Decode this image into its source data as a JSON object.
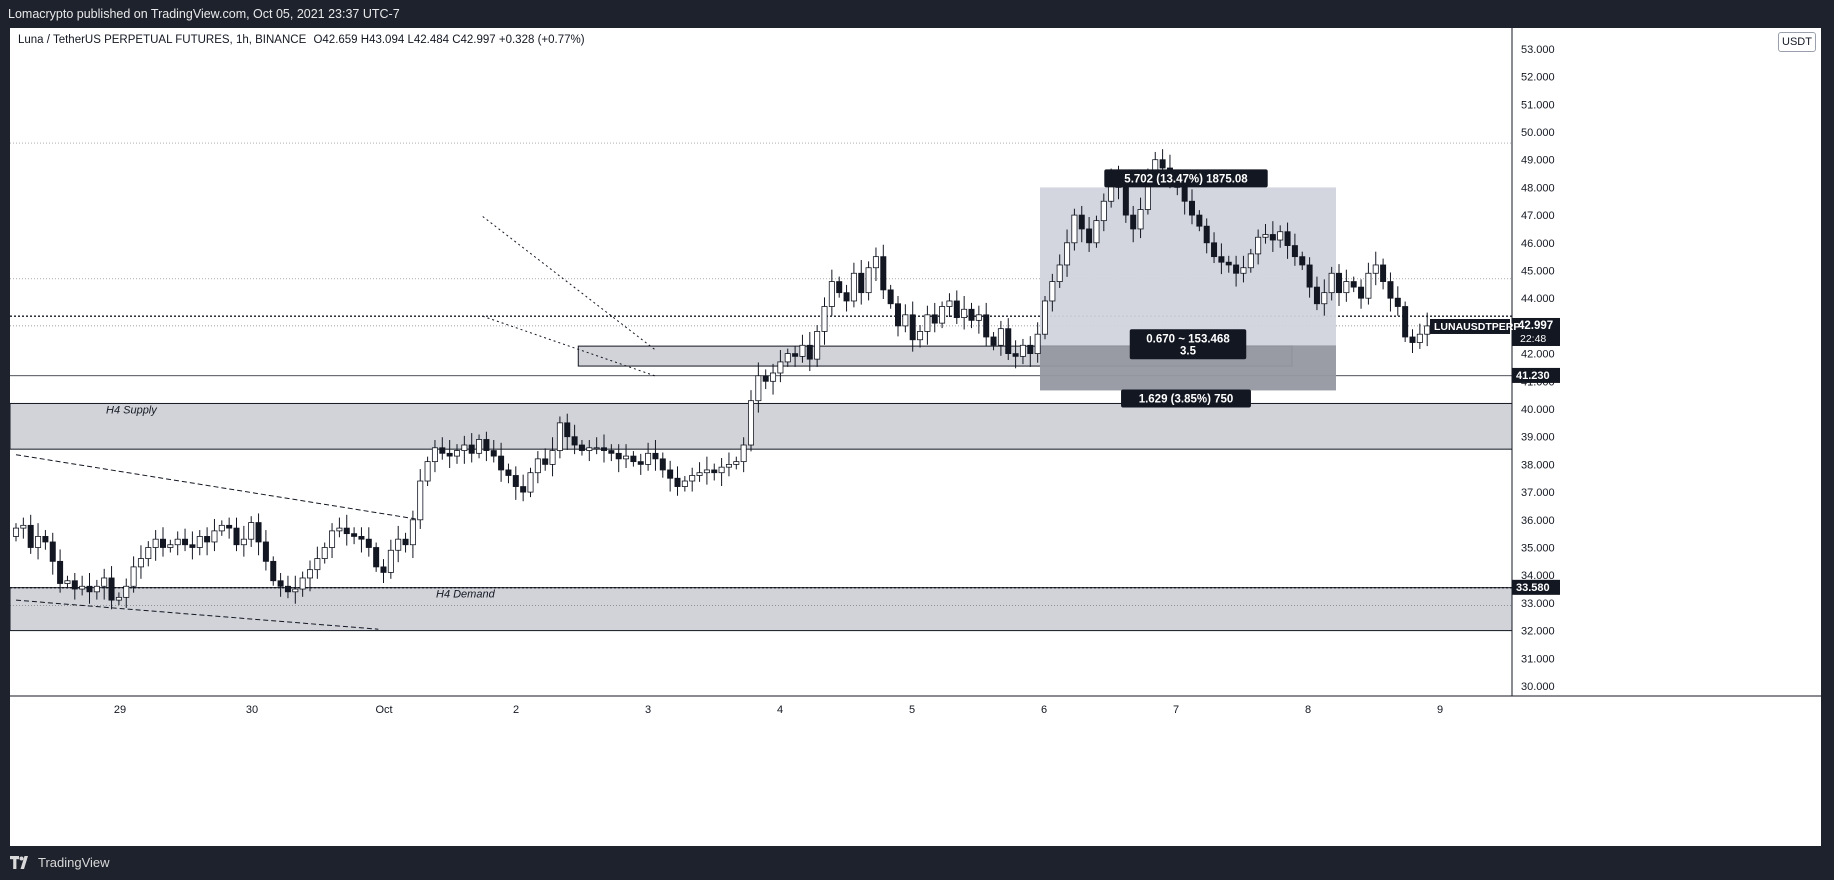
{
  "header": {
    "published_text": "Lomacrypto published on TradingView.com, Oct 05, 2021 23:37 UTC-7"
  },
  "legend": {
    "symbol": "Luna / TetherUS PERPETUAL FUTURES, 1h, BINANCE",
    "ohlc": "O42.659 H43.094 L42.484 C42.997 +0.328 (+0.77%)"
  },
  "currency_button": "USDT",
  "footer": {
    "brand": "TradingView"
  },
  "colors": {
    "up": "#ffffff",
    "down": "#131722",
    "zone": "#d1d3d8",
    "label_bg": "#131722",
    "label_text": "#ffffff",
    "position_box": "#d1d4dc"
  },
  "chart_data": {
    "type": "candlestick",
    "symbol": "LUNAUSDTPERP",
    "timeframe": "1h",
    "x_ticks": [
      "29",
      "30",
      "Oct",
      "2",
      "3",
      "4",
      "5",
      "6",
      "7",
      "8",
      "9"
    ],
    "y_ticks": [
      30,
      31,
      32,
      33,
      34,
      35,
      36,
      37,
      38,
      39,
      40,
      41,
      42,
      43,
      44,
      45,
      46,
      47,
      48,
      49,
      50,
      51,
      52,
      53
    ],
    "ylim": [
      29.5,
      54
    ],
    "price_labels": {
      "last": "42.997",
      "countdown": "22:48",
      "symbol_tag": "LUNAUSDTPERP",
      "level_1": "41.230",
      "level_2": "33.580"
    },
    "zones": [
      {
        "label": "H4 Supply",
        "from": 38.55,
        "to": 40.2
      },
      {
        "label": "H4 Demand",
        "from": 32.0,
        "to": 33.55
      },
      {
        "label": "",
        "from": 41.55,
        "to": 42.27
      }
    ],
    "position": {
      "entry": 42.3,
      "target": 48.0,
      "stop": 40.67,
      "target_label": "5.702 (13.47%) 1875.08",
      "stop_label": "1.629 (3.85%) 750",
      "center_label_1": "0.670 ~ 153.468",
      "center_label_2": "3.5"
    },
    "horizontal_levels": [
      49.6,
      44.7,
      43.35,
      43.0,
      41.2,
      33.55,
      32.9
    ],
    "trendlines": [
      {
        "style": "dashed",
        "from": [
          0,
          38.35
        ],
        "to": [
          54.4,
          36.03
        ]
      },
      {
        "style": "dashed",
        "from": [
          0,
          33.1
        ],
        "to": [
          49.3,
          32.05
        ]
      },
      {
        "style": "dotted",
        "from": [
          63.5,
          46.95
        ],
        "to": [
          86.9,
          42.15
        ]
      },
      {
        "style": "dotted",
        "from": [
          63.5,
          43.35
        ],
        "to": [
          86.9,
          41.2
        ]
      }
    ],
    "closes": [
      35.7,
      35.8,
      35.0,
      35.4,
      35.2,
      34.5,
      33.7,
      33.8,
      33.5,
      33.6,
      33.4,
      33.6,
      33.9,
      33.1,
      33.2,
      33.6,
      34.3,
      34.6,
      35.0,
      35.3,
      35.0,
      35.1,
      35.3,
      35.1,
      35.0,
      35.4,
      35.2,
      35.6,
      35.8,
      35.7,
      35.1,
      35.3,
      35.9,
      35.2,
      34.5,
      33.8,
      33.6,
      33.4,
      33.5,
      33.9,
      34.2,
      34.6,
      35.0,
      35.6,
      35.7,
      35.5,
      35.4,
      35.3,
      35.0,
      34.3,
      34.1,
      34.9,
      35.3,
      35.1,
      36.0,
      37.4,
      38.1,
      38.6,
      38.4,
      38.3,
      38.5,
      38.7,
      38.4,
      38.9,
      38.5,
      38.3,
      37.8,
      37.6,
      37.2,
      37.0,
      37.7,
      38.2,
      38.0,
      38.5,
      39.5,
      39.0,
      38.7,
      38.5,
      38.6,
      38.6,
      38.5,
      38.4,
      38.2,
      38.3,
      38.1,
      38.0,
      38.4,
      38.2,
      37.8,
      37.5,
      37.2,
      37.4,
      37.6,
      37.7,
      37.8,
      37.7,
      37.9,
      38.0,
      38.1,
      38.7,
      40.3,
      41.2,
      41.0,
      41.3,
      41.7,
      42.0,
      41.9,
      42.3,
      41.8,
      42.8,
      43.7,
      44.6,
      44.2,
      43.9,
      44.9,
      44.2,
      45.1,
      45.5,
      44.3,
      43.8,
      43.0,
      43.4,
      42.5,
      42.8,
      43.4,
      43.1,
      43.7,
      43.9,
      43.3,
      43.6,
      43.2,
      43.4,
      42.6,
      42.3,
      42.9,
      42.0,
      41.9,
      42.3,
      42.0,
      42.7,
      43.9,
      44.6,
      45.2,
      46.0,
      47.0,
      46.5,
      46.0,
      46.8,
      47.5,
      48.3,
      48.0,
      47.0,
      46.5,
      47.2,
      48.5,
      49.0,
      48.7,
      48.4,
      48.0,
      47.5,
      47.0,
      46.6,
      46.0,
      45.5,
      45.3,
      45.2,
      44.9,
      45.1,
      45.6,
      46.2,
      46.3,
      46.1,
      46.4,
      45.9,
      45.5,
      45.2,
      44.4,
      43.8,
      44.2,
      44.9,
      44.2,
      44.6,
      44.4,
      44.0,
      44.9,
      45.2,
      44.6,
      44.0,
      43.7,
      42.6,
      42.4,
      42.7,
      43.0
    ]
  }
}
